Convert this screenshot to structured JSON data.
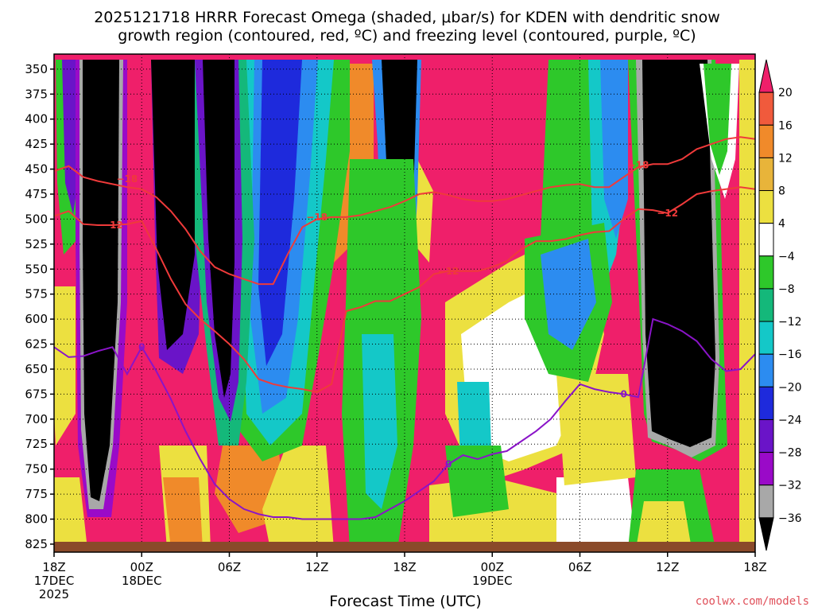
{
  "chart_data": {
    "type": "heatmap",
    "title_line1": "2025121718 HRRR Forecast Omega (shaded, μbar/s) for KDEN with dendritic snow",
    "title_line2": "growth region (contoured, red, ºC) and freezing level (contoured, purple, ºC)",
    "xlabel": "Forecast Time (UTC)",
    "credit": "coolwx.com/models",
    "y_ticks": [
      350,
      375,
      400,
      425,
      450,
      475,
      500,
      525,
      550,
      575,
      600,
      625,
      650,
      675,
      700,
      725,
      750,
      775,
      800,
      825
    ],
    "ylim": [
      335,
      833
    ],
    "x_ticks": [
      {
        "h": 0,
        "l1": "18Z",
        "l2": "17DEC",
        "l3": "2025"
      },
      {
        "h": 6,
        "l1": "00Z",
        "l2": "18DEC",
        "l3": ""
      },
      {
        "h": 12,
        "l1": "06Z",
        "l2": "",
        "l3": ""
      },
      {
        "h": 18,
        "l1": "12Z",
        "l2": "",
        "l3": ""
      },
      {
        "h": 24,
        "l1": "18Z",
        "l2": "",
        "l3": ""
      },
      {
        "h": 30,
        "l1": "00Z",
        "l2": "19DEC",
        "l3": ""
      },
      {
        "h": 36,
        "l1": "06Z",
        "l2": "",
        "l3": ""
      },
      {
        "h": 42,
        "l1": "12Z",
        "l2": "",
        "l3": ""
      },
      {
        "h": 48,
        "l1": "18Z",
        "l2": "",
        "l3": ""
      }
    ],
    "xlim": [
      0,
      48
    ],
    "colorbar": {
      "labels": [
        "20",
        "16",
        "12",
        "8",
        "4",
        "−4",
        "−8",
        "−12",
        "−16",
        "−20",
        "−24",
        "−28",
        "−32",
        "−36"
      ],
      "colors_top_to_bottom": [
        "#ef1f6a",
        "#f05a3c",
        "#f08a2a",
        "#e8b43a",
        "#ece040",
        "#ffffff",
        "#2ec82a",
        "#14b87a",
        "#14c8c8",
        "#2c8cf0",
        "#1e2adc",
        "#6a14c8",
        "#9a0ac8",
        "#a8a8a8",
        "#000000"
      ]
    },
    "contour_labels": {
      "dgz_top": "−18",
      "dgz_bottom": "−12",
      "freezing": "0"
    },
    "series": [
      {
        "name": "dgz_top",
        "points": [
          [
            0,
            452
          ],
          [
            1,
            447
          ],
          [
            2,
            458
          ],
          [
            3,
            462
          ],
          [
            4,
            465
          ],
          [
            5,
            468
          ],
          [
            6,
            470
          ],
          [
            7,
            478
          ],
          [
            8,
            492
          ],
          [
            9,
            510
          ],
          [
            10,
            532
          ],
          [
            11,
            548
          ],
          [
            12,
            555
          ],
          [
            13,
            560
          ],
          [
            14,
            565
          ],
          [
            15,
            565
          ],
          [
            16,
            535
          ],
          [
            17,
            508
          ],
          [
            18,
            500
          ],
          [
            19,
            498
          ],
          [
            20,
            498
          ],
          [
            21,
            496
          ],
          [
            22,
            492
          ],
          [
            23,
            488
          ],
          [
            24,
            482
          ],
          [
            25,
            475
          ],
          [
            26,
            473
          ],
          [
            27,
            476
          ],
          [
            28,
            480
          ],
          [
            29,
            482
          ],
          [
            30,
            482
          ],
          [
            31,
            480
          ],
          [
            32,
            476
          ],
          [
            33,
            472
          ],
          [
            34,
            468
          ],
          [
            35,
            466
          ],
          [
            36,
            465
          ],
          [
            37,
            468
          ],
          [
            38,
            468
          ],
          [
            39,
            458
          ],
          [
            40,
            448
          ],
          [
            41,
            445
          ],
          [
            42,
            445
          ],
          [
            43,
            440
          ],
          [
            44,
            430
          ],
          [
            45,
            425
          ],
          [
            46,
            420
          ],
          [
            47,
            418
          ],
          [
            48,
            420
          ]
        ]
      },
      {
        "name": "dgz_bottom",
        "points": [
          [
            0,
            497
          ],
          [
            1,
            492
          ],
          [
            2,
            505
          ],
          [
            3,
            506
          ],
          [
            4,
            506
          ],
          [
            5,
            505
          ],
          [
            6,
            502
          ],
          [
            7,
            530
          ],
          [
            8,
            560
          ],
          [
            9,
            585
          ],
          [
            10,
            600
          ],
          [
            11,
            612
          ],
          [
            12,
            625
          ],
          [
            13,
            640
          ],
          [
            14,
            660
          ],
          [
            15,
            665
          ],
          [
            16,
            668
          ],
          [
            17,
            670
          ],
          [
            18,
            673
          ],
          [
            19,
            665
          ],
          [
            20,
            592
          ],
          [
            21,
            588
          ],
          [
            22,
            582
          ],
          [
            23,
            582
          ],
          [
            24,
            575
          ],
          [
            25,
            568
          ],
          [
            26,
            555
          ],
          [
            27,
            552
          ],
          [
            28,
            552
          ],
          [
            29,
            552
          ],
          [
            30,
            548
          ],
          [
            31,
            542
          ],
          [
            32,
            530
          ],
          [
            33,
            522
          ],
          [
            34,
            522
          ],
          [
            35,
            520
          ],
          [
            36,
            516
          ],
          [
            37,
            513
          ],
          [
            38,
            512
          ],
          [
            39,
            500
          ],
          [
            40,
            490
          ],
          [
            41,
            491
          ],
          [
            42,
            494
          ],
          [
            43,
            485
          ],
          [
            44,
            475
          ],
          [
            45,
            472
          ],
          [
            46,
            470
          ],
          [
            47,
            468
          ],
          [
            48,
            470
          ]
        ]
      },
      {
        "name": "freezing",
        "points": [
          [
            0,
            628
          ],
          [
            1,
            638
          ],
          [
            2,
            637
          ],
          [
            3,
            632
          ],
          [
            4,
            628
          ],
          [
            5,
            655
          ],
          [
            6,
            628
          ],
          [
            7,
            652
          ],
          [
            8,
            680
          ],
          [
            9,
            712
          ],
          [
            10,
            740
          ],
          [
            11,
            765
          ],
          [
            12,
            780
          ],
          [
            13,
            790
          ],
          [
            14,
            795
          ],
          [
            15,
            798
          ],
          [
            16,
            798
          ],
          [
            17,
            800
          ],
          [
            18,
            800
          ],
          [
            19,
            800
          ],
          [
            20,
            800
          ],
          [
            21,
            800
          ],
          [
            22,
            798
          ],
          [
            23,
            790
          ],
          [
            24,
            782
          ],
          [
            25,
            772
          ],
          [
            26,
            762
          ],
          [
            27,
            745
          ],
          [
            28,
            736
          ],
          [
            29,
            740
          ],
          [
            30,
            735
          ],
          [
            31,
            732
          ],
          [
            32,
            722
          ],
          [
            33,
            712
          ],
          [
            34,
            700
          ],
          [
            35,
            682
          ],
          [
            36,
            665
          ],
          [
            37,
            670
          ],
          [
            38,
            673
          ],
          [
            39,
            675
          ],
          [
            40,
            678
          ],
          [
            41,
            600
          ],
          [
            42,
            605
          ],
          [
            43,
            612
          ],
          [
            44,
            622
          ],
          [
            45,
            640
          ],
          [
            46,
            652
          ],
          [
            47,
            650
          ],
          [
            48,
            635
          ]
        ]
      }
    ]
  }
}
